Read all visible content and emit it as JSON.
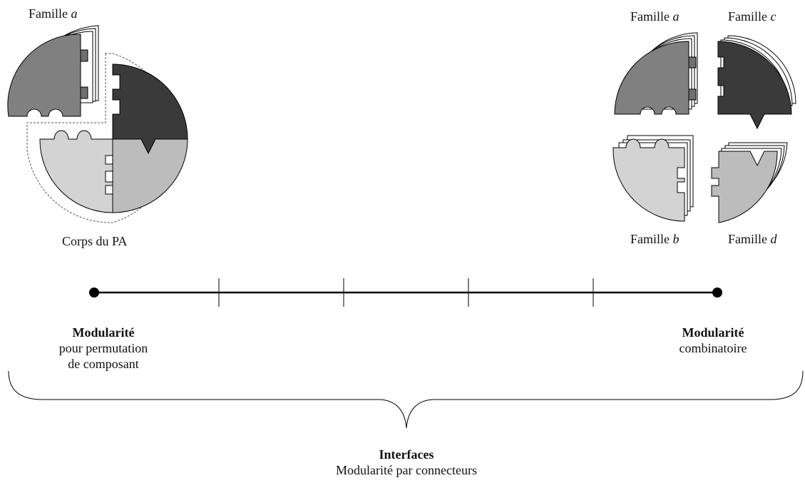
{
  "labels": {
    "left_family_prefix": "Famille",
    "left_family_letter": "a",
    "body_label": "Corps du PA",
    "right_family_a_prefix": "Famille",
    "right_family_a_letter": "a",
    "right_family_c_prefix": "Famille",
    "right_family_c_letter": "c",
    "right_family_b_prefix": "Famille",
    "right_family_b_letter": "b",
    "right_family_d_prefix": "Famille",
    "right_family_d_letter": "d"
  },
  "scale": {
    "left_title": "Modularité",
    "left_line1": "pour permutation",
    "left_line2": "de composant",
    "right_title": "Modularité",
    "right_line1": "combinatoire"
  },
  "bottom": {
    "title": "Interfaces",
    "subtitle": "Modularité par connecteurs"
  },
  "colors": {
    "family_a": "#808080",
    "family_b": "#d3d3d3",
    "family_c": "#3a3a3a",
    "family_d": "#bcbcbc",
    "line": "#000000"
  }
}
